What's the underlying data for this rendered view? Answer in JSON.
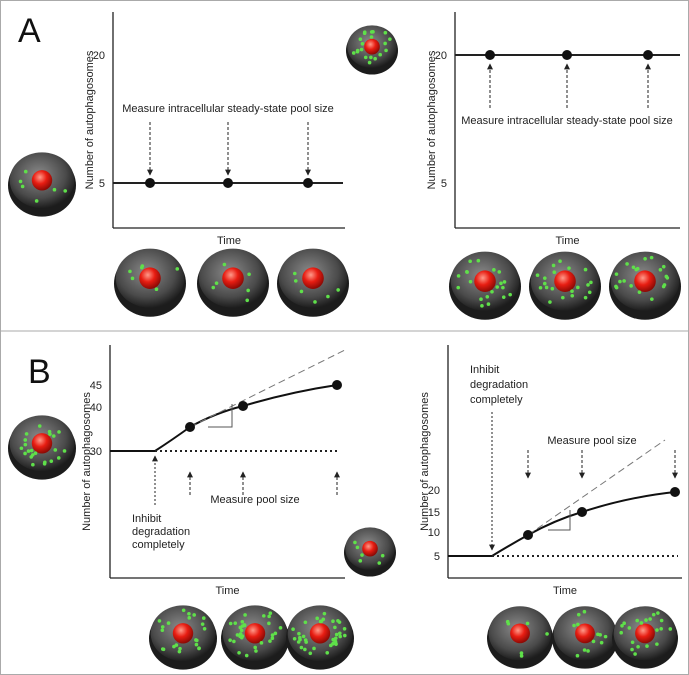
{
  "panels": [
    {
      "label": "A",
      "plots": [
        {
          "y_label": "Number of autophagosomes",
          "x_label": "Time",
          "yticks": [
            20,
            5
          ],
          "annotation": "Measure intracellular steady-state pool size"
        },
        {
          "y_label": "Number of autophagosomes",
          "x_label": "Time",
          "yticks": [
            20,
            5
          ],
          "annotation": "Measure intracellular steady-state pool size"
        }
      ]
    },
    {
      "label": "B",
      "plots": [
        {
          "y_label": "Number of autophagosomes",
          "x_label": "Time",
          "yticks": [
            45,
            40,
            30
          ],
          "annotation": "Measure pool size",
          "inhibit_lines": [
            "Inhibit",
            "degradation",
            "completely"
          ]
        },
        {
          "y_label": "Number of autophagosomes",
          "x_label": "Time",
          "yticks": [
            20,
            15,
            10,
            5
          ],
          "annotation": "Measure pool size",
          "inhibit_lines": [
            "Inhibit",
            "degradation",
            "completely"
          ]
        }
      ]
    }
  ]
}
